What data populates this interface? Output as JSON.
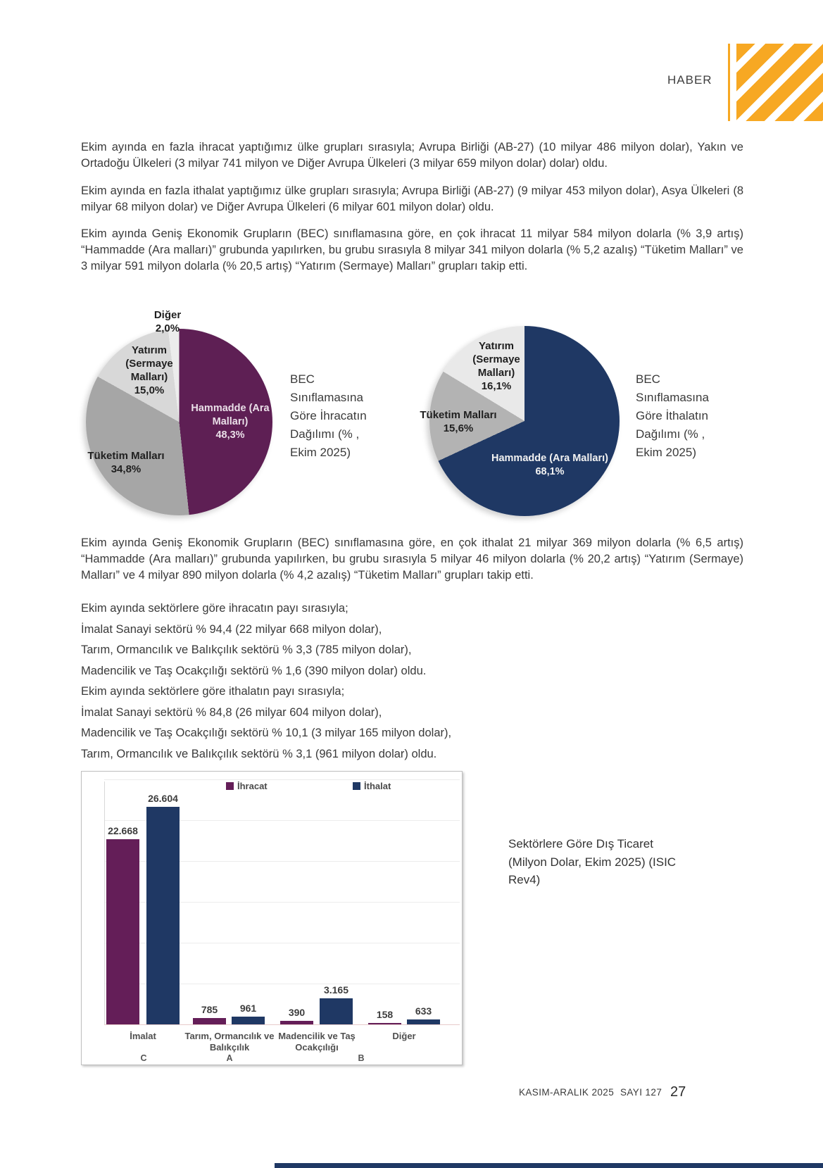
{
  "header": {
    "label": "HABER"
  },
  "paragraphs": {
    "p1": "Ekim ayında en fazla ihracat yaptığımız ülke grupları sırasıyla; Avrupa Birliği (AB-27) (10 milyar 486 milyon dolar), Yakın ve Ortadoğu Ülkeleri (3 milyar 741 milyon ve Diğer Avrupa Ülkeleri (3 milyar 659 milyon dolar) dolar) oldu.",
    "p2": "Ekim ayında en fazla ithalat yaptığımız ülke grupları sırasıyla; Avrupa Birliği (AB-27) (9 milyar 453 milyon dolar), Asya Ülkeleri (8 milyar 68 milyon dolar) ve Diğer Avrupa Ülkeleri (6 milyar 601 milyon dolar) oldu.",
    "p3": "Ekim ayında Geniş Ekonomik Grupların (BEC) sınıflamasına göre, en çok ihracat 11 milyar 584 milyon dolarla (% 3,9 artış) “Hammadde (Ara malları)” grubunda yapılırken, bu grubu sırasıyla 8 milyar 341 milyon dolarla (% 5,2 azalış) “Tüketim Malları” ve 3 milyar 591 milyon dolarla (% 20,5 artış) “Yatırım (Sermaye) Malları” grupları takip etti.",
    "p4": "Ekim ayında Geniş Ekonomik Grupların (BEC) sınıflamasına göre, en çok ithalat 21 milyar 369 milyon dolarla (% 6,5 artış) “Hammadde (Ara malları)” grubunda yapılırken, bu grubu sırasıyla 5 milyar 46 milyon dolarla (% 20,2 artış) “Yatırım (Sermaye) Malları” ve 4 milyar 890 milyon dolarla (% 4,2 azalış) “Tüketim Malları” grupları takip etti."
  },
  "sector_lines": [
    "Ekim ayında sektörlere göre ihracatın payı sırasıyla;",
    "İmalat Sanayi sektörü % 94,4 (22 milyar 668 milyon dolar),",
    "Tarım, Ormancılık ve Balıkçılık sektörü % 3,3 (785 milyon dolar),",
    "Madencilik ve Taş Ocakçılığı sektörü % 1,6 (390 milyon dolar) oldu.",
    "Ekim ayında sektörlere göre ithalatın payı sırasıyla;",
    "İmalat Sanayi sektörü % 84,8 (26 milyar 604 milyon dolar),",
    "Madencilik ve Taş Ocakçılığı sektörü % 10,1 (3 milyar 165 milyon dolar),",
    "Tarım, Ormancılık ve Balıkçılık sektörü % 3,1 (961 milyon dolar) oldu."
  ],
  "footer": {
    "issue": "KASIM-ARALIK 2025",
    "number": "SAYI 127",
    "page": "27"
  },
  "colors": {
    "accent_orange": "#F7A823",
    "export_purple": "#641E58",
    "import_navy": "#1F3864"
  },
  "chart_data": [
    {
      "type": "pie",
      "title": "BEC Sınıflamasına Göre İhracatın Dağılımı (% , Ekim 2025)",
      "legend_position": "labels-on-chart",
      "slices": [
        {
          "label": "Hammadde (Ara Malları)",
          "pct": 48.3,
          "pct_label": "48,3%",
          "color": "#5E1F54"
        },
        {
          "label": "Tüketim Malları",
          "pct": 34.8,
          "pct_label": "34,8%",
          "color": "#A6A6A6"
        },
        {
          "label": "Yatırım (Sermaye Malları)",
          "pct": 15.0,
          "pct_label": "15,0%",
          "color": "#D8D8D8"
        },
        {
          "label": "Diğer",
          "pct": 2.0,
          "pct_label": "2,0%",
          "color": "#ECECEC"
        }
      ]
    },
    {
      "type": "pie",
      "title": "BEC Sınıflamasına Göre İthalatın Dağılımı (% , Ekim 2025)",
      "legend_position": "labels-on-chart",
      "slices": [
        {
          "label": "Hammadde (Ara Malları)",
          "pct": 68.1,
          "pct_label": "68,1%",
          "color": "#1F3864"
        },
        {
          "label": "Tüketim Malları",
          "pct": 15.6,
          "pct_label": "15,6%",
          "color": "#B3B3B3"
        },
        {
          "label": "Yatırım (Sermaye Malları)",
          "pct": 16.1,
          "pct_label": "16,1%",
          "color": "#E9E9E9"
        }
      ]
    },
    {
      "type": "bar",
      "title": "Sektörlere Göre Dış Ticaret (Milyon Dolar, Ekim 2025) (ISIC Rev4)",
      "categories": [
        "İmalat",
        "Tarım, Ormancılık ve Balıkçılık",
        "Madencilik ve Taş Ocakçılığı",
        "Diğer"
      ],
      "isic_codes": [
        "C",
        "A",
        "B"
      ],
      "series": [
        {
          "name": "İhracat",
          "color": "#641E58",
          "values": [
            22668,
            785,
            390,
            158
          ],
          "value_labels": [
            "22.668",
            "785",
            "390",
            "158"
          ]
        },
        {
          "name": "İthalat",
          "color": "#1F3864",
          "values": [
            26604,
            961,
            3165,
            633
          ],
          "value_labels": [
            "26.604",
            "961",
            "3.165",
            "633"
          ]
        }
      ],
      "xlabel": "",
      "ylabel": "",
      "ylim": [
        0,
        30000
      ],
      "gridline_step": 5000,
      "grid": true,
      "legend_position": "top"
    }
  ]
}
